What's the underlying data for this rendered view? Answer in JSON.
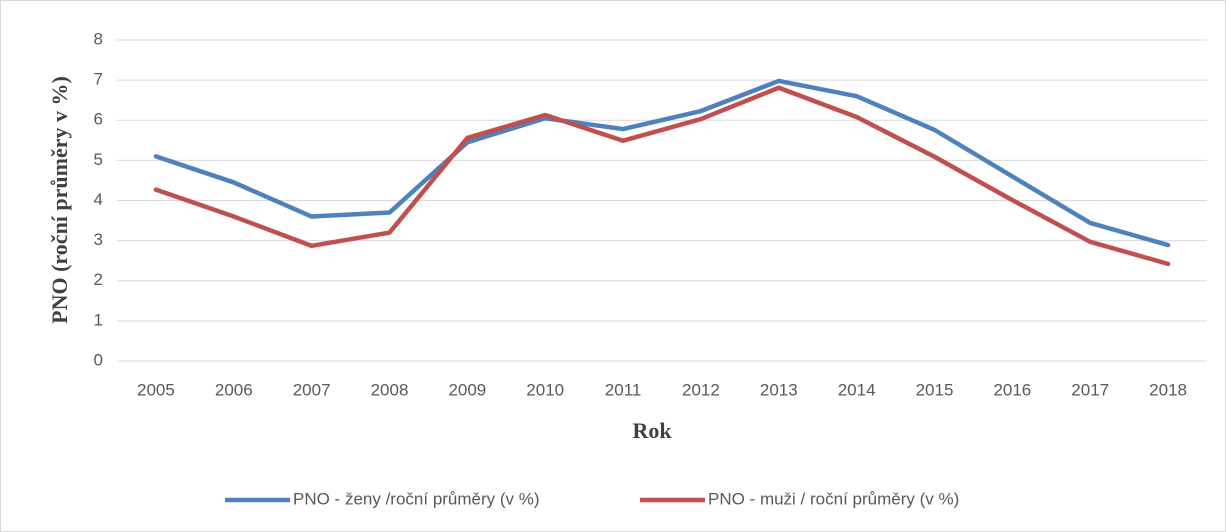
{
  "chart_data": {
    "type": "line",
    "x_label": "Rok",
    "y_label": "PNO (roční průměry v %)",
    "categories": [
      "2005",
      "2006",
      "2007",
      "2008",
      "2009",
      "2010",
      "2011",
      "2012",
      "2013",
      "2014",
      "2015",
      "2016",
      "2017",
      "2018"
    ],
    "series": [
      {
        "name": "PNO - ženy /roční průměry (v %)",
        "color": "#4f81bd",
        "values": [
          5.1,
          4.45,
          3.6,
          3.7,
          5.45,
          6.05,
          5.78,
          6.23,
          6.98,
          6.6,
          5.76,
          4.6,
          3.44,
          2.89
        ]
      },
      {
        "name": "PNO - muži / roční průměry (v %)",
        "color": "#c0504d",
        "values": [
          4.27,
          3.6,
          2.87,
          3.2,
          5.56,
          6.13,
          5.49,
          6.03,
          6.81,
          6.08,
          5.09,
          4.01,
          2.97,
          2.42
        ]
      }
    ],
    "ylim": [
      0,
      8
    ],
    "yticks": [
      0,
      1,
      2,
      3,
      4,
      5,
      6,
      7,
      8
    ],
    "grid": true,
    "legend": "bottom"
  }
}
